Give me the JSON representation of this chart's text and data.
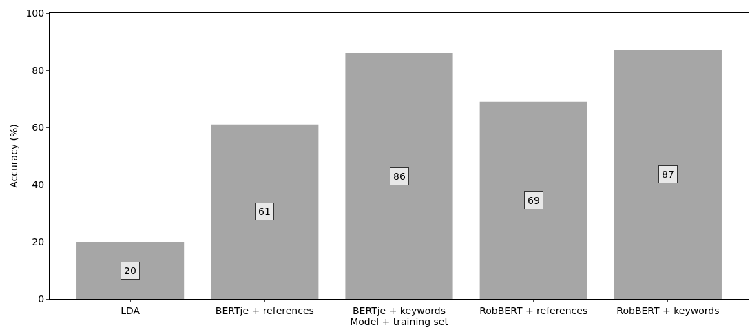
{
  "chart_data": {
    "type": "bar",
    "xlabel": "Model + training set",
    "ylabel": "Accuracy (%)",
    "categories": [
      "LDA",
      "BERTje + references",
      "BERTje + keywords",
      "RobBERT + references",
      "RobBERT + keywords"
    ],
    "values": [
      20,
      61,
      86,
      69,
      87
    ],
    "color": "#a6a6a6",
    "data_labels": true,
    "ylim": [
      0,
      100
    ],
    "yticks": [
      0,
      20,
      40,
      60,
      80,
      100
    ],
    "grid": false
  }
}
